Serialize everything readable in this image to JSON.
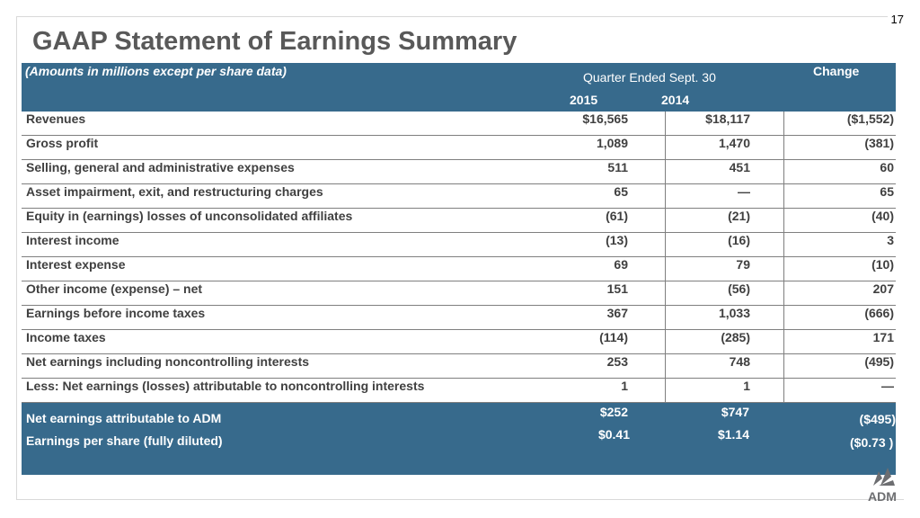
{
  "page_number": "17",
  "title": "GAAP Statement of Earnings Summary",
  "header": {
    "note": "(Amounts in millions except per share data)",
    "quarter_label": "Quarter Ended Sept. 30",
    "change_label": "Change",
    "year_1": "2015",
    "year_2": "2014"
  },
  "rows": [
    {
      "label": "Revenues",
      "y2015": "$16,565",
      "y2014": "$18,117",
      "change": "($1,552)"
    },
    {
      "label": "Gross profit",
      "y2015": "1,089",
      "y2014": "1,470",
      "change": "(381)"
    },
    {
      "label": "Selling, general and administrative expenses",
      "y2015": "511",
      "y2014": "451",
      "change": "60"
    },
    {
      "label": "Asset impairment, exit, and restructuring charges",
      "y2015": "65",
      "y2014": "—",
      "change": "65"
    },
    {
      "label": "Equity in (earnings) losses of unconsolidated affiliates",
      "y2015": "(61)",
      "y2014": "(21)",
      "change": "(40)"
    },
    {
      "label": "Interest income",
      "y2015": "(13)",
      "y2014": "(16)",
      "change": "3"
    },
    {
      "label": "Interest expense",
      "y2015": "69",
      "y2014": "79",
      "change": "(10)"
    },
    {
      "label": "Other income (expense) – net",
      "y2015": "151",
      "y2014": "(56)",
      "change": "207"
    },
    {
      "label": "Earnings before income taxes",
      "y2015": "367",
      "y2014": "1,033",
      "change": "(666)"
    },
    {
      "label": "Income taxes",
      "y2015": "(114)",
      "y2014": "(285)",
      "change": "171"
    },
    {
      "label": "Net earnings including noncontrolling interests",
      "y2015": "253",
      "y2014": "748",
      "change": "(495)"
    },
    {
      "label": "Less: Net earnings (losses) attributable to noncontrolling interests",
      "y2015": "1",
      "y2014": "1",
      "change": "—"
    }
  ],
  "footer": {
    "net_label": "Net earnings attributable to ADM",
    "net_2015": "$252",
    "net_2014": "$747",
    "net_change": "($495)",
    "eps_label": "Earnings per share (fully diluted)",
    "eps_2015": "$0.41",
    "eps_2014": "$1.14",
    "eps_change": "($0.73 )"
  },
  "logo": {
    "text": "ADM",
    "icon": "adm-leaf-icon"
  },
  "colors": {
    "header_bg": "#376a8c",
    "title": "#595959",
    "body_text": "#404040"
  }
}
